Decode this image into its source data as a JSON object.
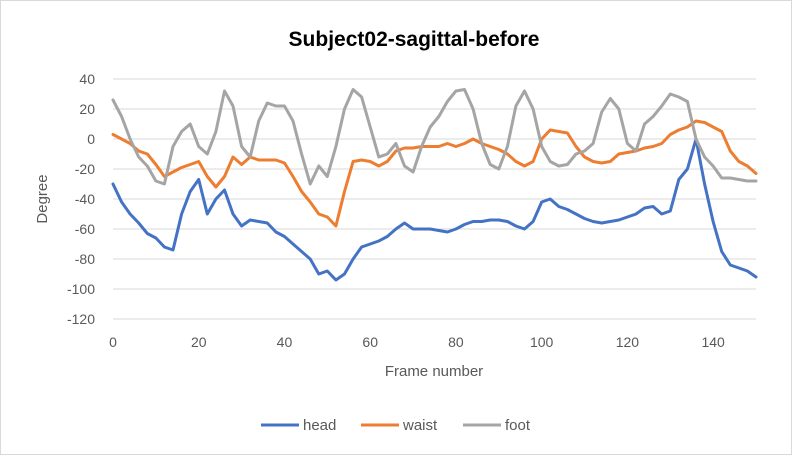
{
  "chart_data": {
    "type": "line",
    "title": "Subject02-sagittal-before",
    "xlabel": "Frame number",
    "ylabel": "Degree",
    "xlim": [
      0,
      150
    ],
    "ylim": [
      -120,
      40
    ],
    "xticks": [
      0,
      20,
      40,
      60,
      80,
      100,
      120,
      140
    ],
    "yticks": [
      40,
      20,
      0,
      -20,
      -40,
      -60,
      -80,
      -100,
      -120
    ],
    "grid": "horizontal",
    "legend": "bottom",
    "x": [
      0,
      2,
      4,
      6,
      8,
      10,
      12,
      14,
      16,
      18,
      20,
      22,
      24,
      26,
      28,
      30,
      32,
      34,
      36,
      38,
      40,
      42,
      44,
      46,
      48,
      50,
      52,
      54,
      56,
      58,
      60,
      62,
      64,
      66,
      68,
      70,
      72,
      74,
      76,
      78,
      80,
      82,
      84,
      86,
      88,
      90,
      92,
      94,
      96,
      98,
      100,
      102,
      104,
      106,
      108,
      110,
      112,
      114,
      116,
      118,
      120,
      122,
      124,
      126,
      128,
      130,
      132,
      134,
      136,
      138,
      140,
      142,
      144,
      146,
      148,
      150
    ],
    "series": [
      {
        "name": "head",
        "color": "#4472C4",
        "values": [
          -30,
          -42,
          -50,
          -56,
          -63,
          -66,
          -72,
          -74,
          -50,
          -35,
          -27,
          -50,
          -40,
          -34,
          -50,
          -58,
          -54,
          -55,
          -56,
          -62,
          -65,
          -70,
          -75,
          -80,
          -90,
          -88,
          -94,
          -90,
          -80,
          -72,
          -70,
          -68,
          -65,
          -60,
          -56,
          -60,
          -60,
          -60,
          -61,
          -62,
          -60,
          -57,
          -55,
          -55,
          -54,
          -54,
          -55,
          -58,
          -60,
          -55,
          -42,
          -40,
          -45,
          -47,
          -50,
          -53,
          -55,
          -56,
          -55,
          -54,
          -52,
          -50,
          -46,
          -45,
          -50,
          -48,
          -27,
          -20,
          0,
          -30,
          -55,
          -75,
          -84,
          -86,
          -88,
          -92
        ]
      },
      {
        "name": "waist",
        "color": "#ED7D31",
        "values": [
          3,
          0,
          -3,
          -8,
          -10,
          -17,
          -25,
          -22,
          -19,
          -17,
          -15,
          -25,
          -32,
          -25,
          -12,
          -17,
          -12,
          -14,
          -14,
          -14,
          -16,
          -25,
          -35,
          -42,
          -50,
          -52,
          -58,
          -35,
          -15,
          -14,
          -15,
          -18,
          -15,
          -8,
          -6,
          -6,
          -5,
          -5,
          -5,
          -3,
          -5,
          -3,
          0,
          -3,
          -5,
          -7,
          -10,
          -15,
          -18,
          -15,
          0,
          6,
          5,
          4,
          -5,
          -12,
          -15,
          -16,
          -15,
          -10,
          -9,
          -8,
          -6,
          -5,
          -3,
          3,
          6,
          8,
          12,
          11,
          8,
          5,
          -8,
          -15,
          -18,
          -23
        ]
      },
      {
        "name": "foot",
        "color": "#A5A5A5",
        "values": [
          26,
          15,
          0,
          -12,
          -18,
          -28,
          -30,
          -5,
          5,
          10,
          -5,
          -10,
          5,
          32,
          22,
          -5,
          -12,
          12,
          24,
          22,
          22,
          12,
          -10,
          -30,
          -18,
          -25,
          -5,
          20,
          33,
          28,
          8,
          -12,
          -10,
          -3,
          -18,
          -22,
          -5,
          8,
          15,
          25,
          32,
          33,
          20,
          -3,
          -17,
          -20,
          -5,
          22,
          32,
          20,
          -5,
          -15,
          -18,
          -17,
          -10,
          -8,
          -3,
          18,
          27,
          20,
          -3,
          -8,
          10,
          15,
          22,
          30,
          28,
          25,
          0,
          -12,
          -18,
          -26,
          -26,
          -27,
          -28,
          -28
        ]
      }
    ]
  }
}
